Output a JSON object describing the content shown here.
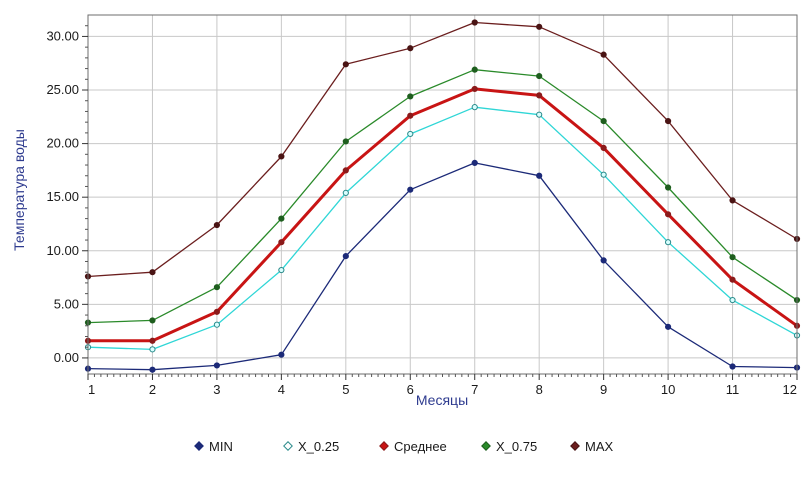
{
  "chart_data": {
    "type": "line",
    "title": "",
    "xlabel": "Месяцы",
    "ylabel": "Температура воды",
    "x": [
      1,
      2,
      3,
      4,
      5,
      6,
      7,
      8,
      9,
      10,
      11,
      12
    ],
    "x_tick_labels": [
      "1",
      "2",
      "3",
      "4",
      "5",
      "6",
      "7",
      "8",
      "9",
      "10",
      "11",
      "12"
    ],
    "xlim": [
      1,
      12
    ],
    "ylim": [
      -1.5,
      32
    ],
    "y_ticks": [
      0,
      5,
      10,
      15,
      20,
      25,
      30
    ],
    "y_tick_labels": [
      "0.00",
      "5.00",
      "10.00",
      "15.00",
      "20.00",
      "25.00",
      "30.00"
    ],
    "grid": true,
    "legend_position": "bottom-center",
    "series": [
      {
        "name": "MIN",
        "color": "#1c2a78",
        "marker_color": "#1c2a78",
        "values": [
          -1.0,
          -1.1,
          -0.7,
          0.3,
          9.5,
          15.7,
          18.2,
          17.0,
          9.1,
          2.9,
          -0.8,
          -0.9
        ]
      },
      {
        "name": "X_0.25",
        "color": "#2fd6d6",
        "marker_color": "#2a8a8a",
        "values": [
          1.0,
          0.8,
          3.1,
          8.2,
          15.4,
          20.9,
          23.4,
          22.7,
          17.1,
          10.8,
          5.4,
          2.1
        ]
      },
      {
        "name": "Среднее",
        "color": "#c81414",
        "marker_color": "#8b1a1a",
        "values": [
          1.6,
          1.6,
          4.3,
          10.8,
          17.5,
          22.6,
          25.1,
          24.5,
          19.6,
          13.4,
          7.3,
          3.0
        ]
      },
      {
        "name": "X_0.75",
        "color": "#2a8a2a",
        "marker_color": "#1e5e1e",
        "values": [
          3.3,
          3.5,
          6.6,
          13.0,
          20.2,
          24.4,
          26.9,
          26.3,
          22.1,
          15.9,
          9.4,
          5.4
        ]
      },
      {
        "name": "MAX",
        "color": "#6b1e1e",
        "marker_color": "#4a1414",
        "values": [
          7.6,
          8.0,
          12.4,
          18.8,
          27.4,
          28.9,
          31.3,
          30.9,
          28.3,
          22.1,
          14.7,
          11.1
        ]
      }
    ]
  }
}
